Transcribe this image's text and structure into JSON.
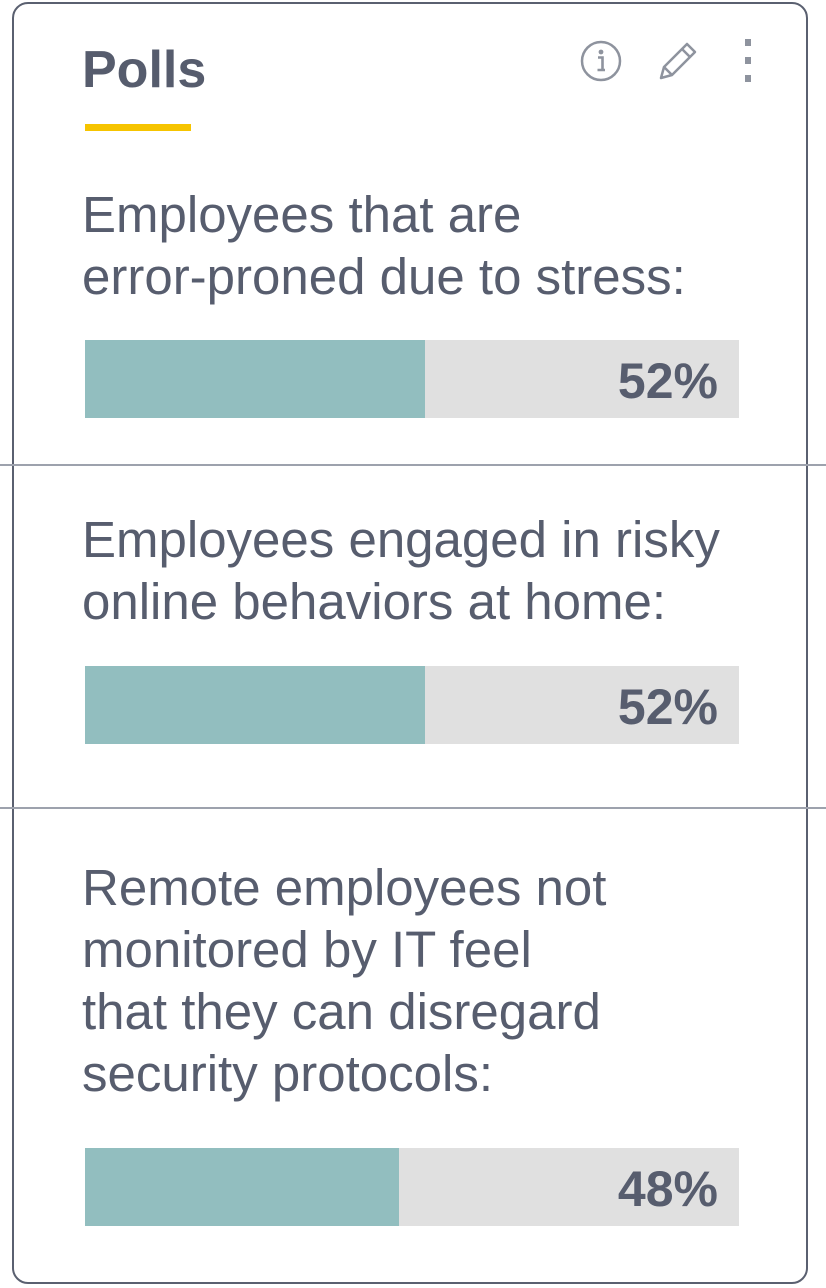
{
  "widget": {
    "title": "Polls",
    "accent_color": "#f6c400",
    "icons": [
      "info-icon",
      "edit-icon",
      "more-vertical-icon"
    ]
  },
  "polls": [
    {
      "question": "Employees that are\nerror-proned due to stress:",
      "percent": 52,
      "value_label": "52%"
    },
    {
      "question": "Employees engaged in risky\nonline behaviors at home:",
      "percent": 52,
      "value_label": "52%"
    },
    {
      "question": "Remote employees not\nmonitored by IT feel\nthat they can disregard\nsecurity protocols:",
      "percent": 48,
      "value_label": "48%"
    }
  ],
  "colors": {
    "bar_fill": "#92bebf",
    "bar_track": "#e0e0e0",
    "text": "#575d6e"
  }
}
